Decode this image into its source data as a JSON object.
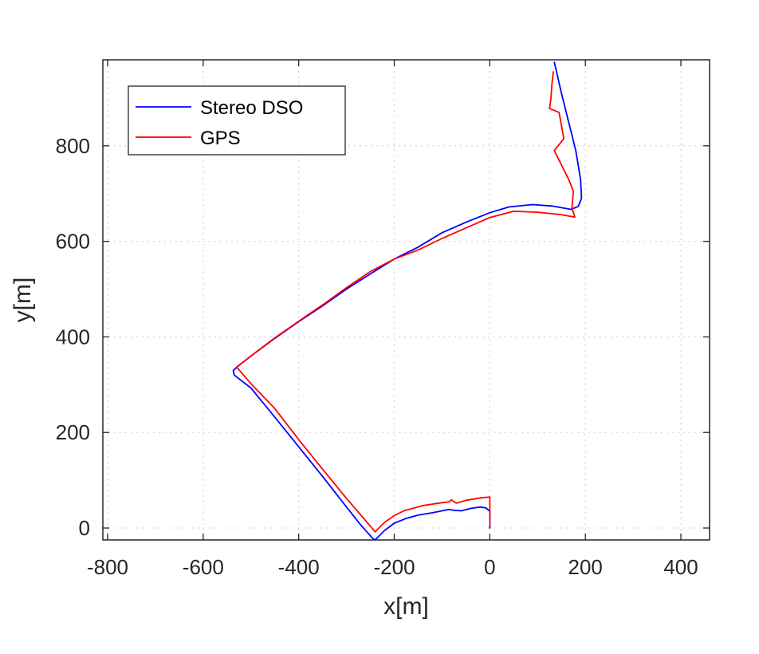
{
  "chart_data": {
    "type": "line",
    "xlabel": "x[m]",
    "ylabel": "y[m]",
    "xlim": [
      -810,
      460
    ],
    "ylim": [
      -25,
      980
    ],
    "xticks": [
      -800,
      -600,
      -400,
      -200,
      0,
      200,
      400
    ],
    "yticks": [
      0,
      200,
      400,
      600,
      800
    ],
    "xtick_labels": [
      "-800",
      "-600",
      "-400",
      "-200",
      "0",
      "200",
      "400"
    ],
    "ytick_labels": [
      "0",
      "200",
      "400",
      "600",
      "800"
    ],
    "grid": true,
    "legend_position": "top-left",
    "series": [
      {
        "name": "Stereo DSO",
        "color": "#0000ff",
        "points": [
          [
            0,
            0
          ],
          [
            0,
            20
          ],
          [
            0,
            35
          ],
          [
            -8,
            42
          ],
          [
            -20,
            44
          ],
          [
            -40,
            41
          ],
          [
            -60,
            36
          ],
          [
            -75,
            37
          ],
          [
            -85,
            39
          ],
          [
            -100,
            36
          ],
          [
            -120,
            32
          ],
          [
            -150,
            27
          ],
          [
            -175,
            20
          ],
          [
            -200,
            10
          ],
          [
            -220,
            -5
          ],
          [
            -235,
            -20
          ],
          [
            -240,
            -25
          ],
          [
            -245,
            -22
          ],
          [
            -270,
            6
          ],
          [
            -300,
            44
          ],
          [
            -350,
            108
          ],
          [
            -400,
            170
          ],
          [
            -450,
            232
          ],
          [
            -500,
            293
          ],
          [
            -535,
            320
          ],
          [
            -537,
            330
          ],
          [
            -528,
            338
          ],
          [
            -500,
            360
          ],
          [
            -450,
            397
          ],
          [
            -400,
            432
          ],
          [
            -350,
            465
          ],
          [
            -300,
            500
          ],
          [
            -250,
            532
          ],
          [
            -200,
            563
          ],
          [
            -150,
            588
          ],
          [
            -100,
            618
          ],
          [
            -50,
            640
          ],
          [
            0,
            660
          ],
          [
            40,
            672
          ],
          [
            90,
            677
          ],
          [
            130,
            674
          ],
          [
            170,
            667
          ],
          [
            185,
            673
          ],
          [
            192,
            690
          ],
          [
            190,
            730
          ],
          [
            180,
            790
          ],
          [
            165,
            850
          ],
          [
            150,
            910
          ],
          [
            135,
            975
          ]
        ]
      },
      {
        "name": "GPS",
        "color": "#ff0000",
        "points": [
          [
            0,
            5
          ],
          [
            0,
            65
          ],
          [
            -20,
            63
          ],
          [
            -50,
            58
          ],
          [
            -70,
            52
          ],
          [
            -78,
            57
          ],
          [
            -80,
            59
          ],
          [
            -85,
            55
          ],
          [
            -100,
            53
          ],
          [
            -140,
            47
          ],
          [
            -180,
            36
          ],
          [
            -200,
            26
          ],
          [
            -220,
            12
          ],
          [
            -240,
            -8
          ],
          [
            -300,
            62
          ],
          [
            -350,
            123
          ],
          [
            -400,
            185
          ],
          [
            -450,
            250
          ],
          [
            -500,
            302
          ],
          [
            -530,
            337
          ],
          [
            -500,
            360
          ],
          [
            -450,
            398
          ],
          [
            -400,
            433
          ],
          [
            -350,
            467
          ],
          [
            -300,
            503
          ],
          [
            -250,
            537
          ],
          [
            -200,
            563
          ],
          [
            -150,
            582
          ],
          [
            -100,
            606
          ],
          [
            -50,
            628
          ],
          [
            0,
            650
          ],
          [
            50,
            663
          ],
          [
            100,
            661
          ],
          [
            150,
            656
          ],
          [
            165,
            653
          ],
          [
            178,
            651
          ],
          [
            172,
            670
          ],
          [
            175,
            705
          ],
          [
            165,
            730
          ],
          [
            150,
            760
          ],
          [
            135,
            790
          ],
          [
            155,
            815
          ],
          [
            145,
            870
          ],
          [
            125,
            878
          ],
          [
            128,
            900
          ],
          [
            130,
            930
          ],
          [
            133,
            955
          ]
        ]
      }
    ]
  }
}
